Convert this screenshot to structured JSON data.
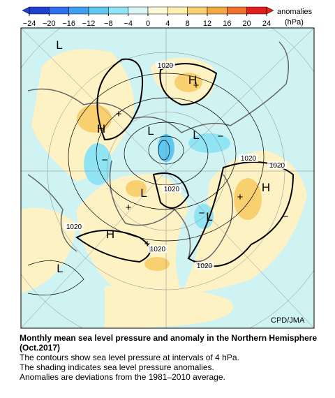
{
  "colorbar": {
    "ticks": [
      {
        "value": -24,
        "label": "−24"
      },
      {
        "value": -20,
        "label": "−20"
      },
      {
        "value": -16,
        "label": "−16"
      },
      {
        "value": -12,
        "label": "−12"
      },
      {
        "value": -8,
        "label": "−8"
      },
      {
        "value": -4,
        "label": "−4"
      },
      0,
      4,
      8,
      12,
      16,
      20,
      24
    ],
    "colors": [
      "#2040d0",
      "#3070f0",
      "#40a0f0",
      "#60c8f0",
      "#90e4f4",
      "#d8f6f6",
      "#fdf8d8",
      "#fff0b0",
      "#f8d070",
      "#f4a840",
      "#f07030",
      "#e02020"
    ],
    "label": "anomalies",
    "unit": "(hPa)"
  },
  "map": {
    "labels": [
      "L",
      "1020",
      "H",
      "+",
      "H",
      "+",
      "L",
      "L",
      "−",
      "1020",
      "1020",
      "H",
      "+",
      "−",
      "1020",
      "L",
      "+",
      "−",
      "L",
      "1020",
      "H",
      "+",
      "1020",
      "1020",
      "L",
      "−"
    ],
    "credit": "CPD/JMA"
  },
  "caption": {
    "title": "Monthly mean sea level pressure and anomaly in the Northern Hemisphere (Oct.2017)",
    "lines": [
      "The contours show sea level pressure at intervals of 4 hPa.",
      "The shading indicates sea level pressure anomalies.",
      "Anomalies are deviations from the 1981–2010 average."
    ]
  }
}
